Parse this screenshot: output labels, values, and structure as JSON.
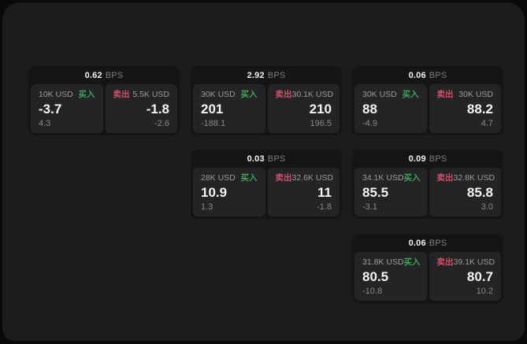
{
  "labels": {
    "bps_unit": "BPS",
    "buy": "买入",
    "sell": "卖出"
  },
  "colors": {
    "background": "#0a0a0a",
    "panel": "#1c1c1d",
    "card": "#151516",
    "subpanel": "#242427",
    "buy_accent": "#3fa35a",
    "sell_accent": "#d15068"
  },
  "cards": [
    {
      "bps": "0.62",
      "buy": {
        "amount": "10K USD",
        "value": "-3.7",
        "delta": "4.3"
      },
      "sell": {
        "amount": "5.5K USD",
        "value": "-1.8",
        "delta": "-2.6"
      }
    },
    {
      "bps": "2.92",
      "buy": {
        "amount": "30K USD",
        "value": "201",
        "delta": "-188.1"
      },
      "sell": {
        "amount": "30.1K USD",
        "value": "210",
        "delta": "196.5"
      }
    },
    {
      "bps": "0.06",
      "buy": {
        "amount": "30K USD",
        "value": "88",
        "delta": "-4.9"
      },
      "sell": {
        "amount": "30K USD",
        "value": "88.2",
        "delta": "4.7"
      }
    },
    {
      "bps": "0.03",
      "buy": {
        "amount": "28K USD",
        "value": "10.9",
        "delta": "1.3"
      },
      "sell": {
        "amount": "32.6K USD",
        "value": "11",
        "delta": "-1.8"
      }
    },
    {
      "bps": "0.09",
      "buy": {
        "amount": "34.1K USD",
        "value": "85.5",
        "delta": "-3.1"
      },
      "sell": {
        "amount": "32.8K USD",
        "value": "85.8",
        "delta": "3.0"
      }
    },
    {
      "bps": "0.06",
      "buy": {
        "amount": "31.8K USD",
        "value": "80.5",
        "delta": "-10.8"
      },
      "sell": {
        "amount": "39.1K USD",
        "value": "80.7",
        "delta": "10.2"
      }
    }
  ]
}
